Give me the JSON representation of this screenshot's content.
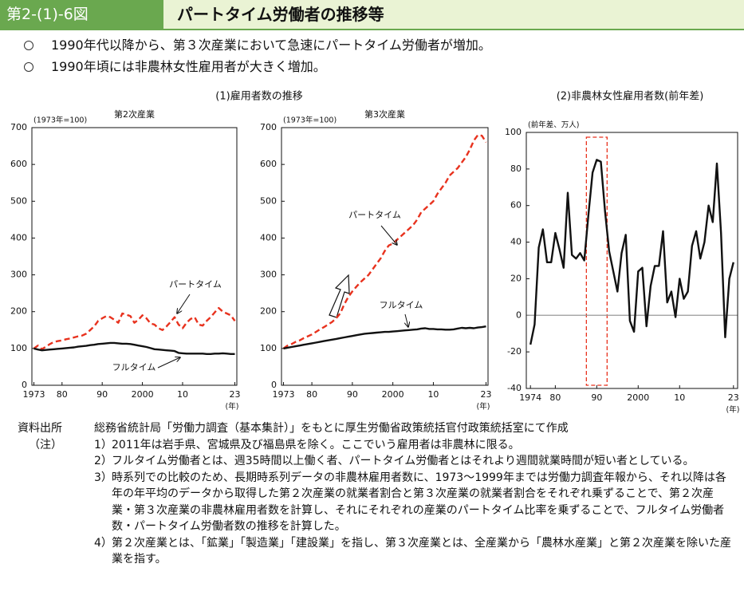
{
  "header": {
    "label": "第2-(1)-6図",
    "title": "パートタイム労働者の推移等"
  },
  "bullets": [
    "1990年代以降から、第３次産業において急速にパートタイム労働者が増加。",
    "1990年頃には非農林女性雇用者が大きく増加。"
  ],
  "panel_titles": [
    "(1)雇用者数の推移",
    "(2)非農林女性雇用者数(前年差)"
  ],
  "chart_data": [
    {
      "type": "line",
      "title": "第2次産業",
      "ylabel": "(1973年=100)",
      "xlabel": "(年)",
      "x": [
        1973,
        1974,
        1975,
        1976,
        1977,
        1978,
        1979,
        1980,
        1981,
        1982,
        1983,
        1984,
        1985,
        1986,
        1987,
        1988,
        1989,
        1990,
        1991,
        1992,
        1993,
        1994,
        1995,
        1996,
        1997,
        1998,
        1999,
        2000,
        2001,
        2002,
        2003,
        2004,
        2005,
        2006,
        2007,
        2008,
        2009,
        2010,
        2011,
        2012,
        2013,
        2014,
        2015,
        2016,
        2017,
        2018,
        2019,
        2020,
        2021,
        2022,
        2023
      ],
      "series": [
        {
          "name": "パートタイム",
          "color": "#e8321e",
          "style": "dashed",
          "values": [
            100,
            108,
            98,
            105,
            112,
            118,
            120,
            122,
            125,
            127,
            130,
            133,
            135,
            140,
            150,
            160,
            175,
            182,
            188,
            185,
            178,
            170,
            195,
            192,
            188,
            170,
            178,
            190,
            182,
            168,
            165,
            155,
            150,
            160,
            172,
            185,
            165,
            155,
            170,
            180,
            185,
            165,
            162,
            175,
            185,
            198,
            210,
            200,
            195,
            190,
            175
          ]
        },
        {
          "name": "フルタイム",
          "color": "#111111",
          "style": "solid",
          "values": [
            100,
            97,
            95,
            96,
            97,
            98,
            99,
            100,
            101,
            102,
            103,
            105,
            106,
            107,
            109,
            110,
            112,
            113,
            114,
            115,
            115,
            114,
            113,
            113,
            112,
            110,
            108,
            106,
            104,
            101,
            98,
            97,
            96,
            95,
            94,
            93,
            88,
            87,
            86,
            86,
            86,
            86,
            86,
            85,
            85,
            86,
            86,
            87,
            86,
            85,
            85
          ]
        }
      ],
      "xlim": [
        1972.5,
        2023.5
      ],
      "xticks": [
        1973,
        {
          "value": 1980,
          "label": "80"
        },
        {
          "value": 1990,
          "label": "90"
        },
        2000,
        {
          "value": 2010,
          "label": "10"
        },
        {
          "value": 2023,
          "label": "23"
        }
      ],
      "ylim": [
        0,
        700
      ],
      "yticks": [
        0,
        100,
        200,
        300,
        400,
        500,
        600,
        700
      ]
    },
    {
      "type": "line",
      "title": "第3次産業",
      "ylabel": "(1973年=100)",
      "xlabel": "(年)",
      "x": [
        1973,
        1974,
        1975,
        1976,
        1977,
        1978,
        1979,
        1980,
        1981,
        1982,
        1983,
        1984,
        1985,
        1986,
        1987,
        1988,
        1989,
        1990,
        1991,
        1992,
        1993,
        1994,
        1995,
        1996,
        1997,
        1998,
        1999,
        2000,
        2001,
        2002,
        2003,
        2004,
        2005,
        2006,
        2007,
        2008,
        2009,
        2010,
        2011,
        2012,
        2013,
        2014,
        2015,
        2016,
        2017,
        2018,
        2019,
        2020,
        2021,
        2022,
        2023
      ],
      "series": [
        {
          "name": "パートタイム",
          "color": "#e8321e",
          "style": "dashed",
          "values": [
            100,
            108,
            112,
            118,
            122,
            128,
            133,
            138,
            145,
            152,
            158,
            165,
            172,
            182,
            195,
            220,
            240,
            255,
            268,
            280,
            290,
            300,
            315,
            330,
            345,
            365,
            380,
            385,
            395,
            405,
            415,
            425,
            435,
            450,
            470,
            480,
            490,
            500,
            520,
            535,
            550,
            570,
            580,
            590,
            605,
            620,
            640,
            665,
            680,
            678,
            660
          ]
        },
        {
          "name": "フルタイム",
          "color": "#111111",
          "style": "solid",
          "values": [
            100,
            102,
            104,
            106,
            108,
            110,
            112,
            114,
            116,
            118,
            120,
            122,
            124,
            126,
            128,
            130,
            132,
            134,
            136,
            138,
            140,
            141,
            142,
            143,
            144,
            145,
            145,
            146,
            147,
            148,
            149,
            150,
            151,
            152,
            154,
            155,
            153,
            153,
            152,
            152,
            151,
            151,
            152,
            154,
            156,
            155,
            156,
            155,
            157,
            158,
            160
          ]
        }
      ],
      "xlim": [
        1972.5,
        2023.5
      ],
      "xticks": [
        1973,
        {
          "value": 1980,
          "label": "80"
        },
        {
          "value": 1990,
          "label": "90"
        },
        2000,
        {
          "value": 2010,
          "label": "10"
        },
        {
          "value": 2023,
          "label": "23"
        }
      ],
      "ylim": [
        0,
        700
      ],
      "yticks": [
        0,
        100,
        200,
        300,
        400,
        500,
        600,
        700
      ]
    },
    {
      "type": "line",
      "ylabel": "(前年差、万人)",
      "xlabel": "(年)",
      "x": [
        1974,
        1975,
        1976,
        1977,
        1978,
        1979,
        1980,
        1981,
        1982,
        1983,
        1984,
        1985,
        1986,
        1987,
        1988,
        1989,
        1990,
        1991,
        1992,
        1993,
        1994,
        1995,
        1996,
        1997,
        1998,
        1999,
        2000,
        2001,
        2002,
        2003,
        2004,
        2005,
        2006,
        2007,
        2008,
        2009,
        2010,
        2011,
        2012,
        2013,
        2014,
        2015,
        2016,
        2017,
        2018,
        2019,
        2020,
        2021,
        2022,
        2023
      ],
      "series": [
        {
          "color": "#111111",
          "style": "solid",
          "values": [
            -16,
            -5,
            37,
            47,
            29,
            29,
            45,
            36,
            26,
            67,
            33,
            31,
            34,
            30,
            55,
            78,
            85,
            84,
            57,
            35,
            24,
            13,
            34,
            44,
            -3,
            -9,
            24,
            26,
            -6,
            16,
            27,
            27,
            46,
            7,
            13,
            -1,
            20,
            9,
            13,
            38,
            46,
            31,
            40,
            60,
            51,
            83,
            45,
            -12,
            20,
            29
          ]
        }
      ],
      "xlim": [
        1973,
        2024
      ],
      "xticks": [
        1974,
        {
          "value": 1980,
          "label": "80"
        },
        {
          "value": 1990,
          "label": "90"
        },
        2000,
        {
          "value": 2010,
          "label": "10"
        },
        {
          "value": 2023,
          "label": "23"
        }
      ],
      "ylim": [
        -40,
        100
      ],
      "yticks": [
        -40,
        -20,
        0,
        20,
        40,
        60,
        80,
        100
      ],
      "zero_line": true,
      "highlight_x": [
        1987.5,
        1992.5
      ],
      "highlight_color": "#e8321e"
    }
  ],
  "notes": {
    "source_label": "資料出所",
    "source": "総務省統計局「労働力調査（基本集計）」をもとに厚生労働省政策統括官付政策統括室にて作成",
    "note_label": "（注）",
    "items": [
      {
        "num": "1）",
        "text": "2011年は岩手県、宮城県及び福島県を除く。ここでいう雇用者は非農林に限る。"
      },
      {
        "num": "2）",
        "text": "フルタイム労働者とは、週35時間以上働く者、パートタイム労働者とはそれより週間就業時間が短い者としている。"
      },
      {
        "num": "3）",
        "text": "時系列での比較のため、長期時系列データの非農林雇用者数に、1973～1999年までは労働力調査年報から、それ以降は各年の年平均のデータから取得した第２次産業の就業者割合と第３次産業の就業者割合をそれぞれ乗ずることで、第２次産業・第３次産業の非農林雇用者数を計算し、それにそれぞれの産業のパートタイム比率を乗ずることで、フルタイム労働者数・パートタイム労働者数の推移を計算した。"
      },
      {
        "num": "4）",
        "text": "第２次産業とは、「鉱業」「製造業」「建設業」を指し、第３次産業とは、全産業から「農林水産業」と第２次産業を除いた産業を指す。"
      }
    ]
  }
}
